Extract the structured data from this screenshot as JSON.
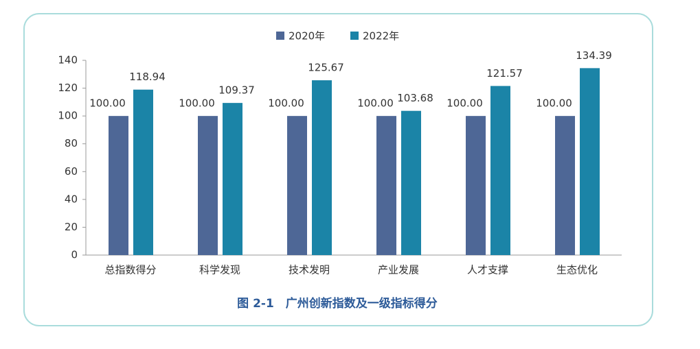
{
  "chart_data": {
    "type": "bar",
    "caption": "图 2-1　广州创新指数及一级指标得分",
    "categories": [
      "总指数得分",
      "科学发现",
      "技术发明",
      "产业发展",
      "人才支撑",
      "生态优化"
    ],
    "series": [
      {
        "name": "2020年",
        "color": "#4e6796",
        "values": [
          100,
          100,
          100,
          100,
          100,
          100
        ],
        "value_labels": [
          "100.00",
          "100.00",
          "100.00",
          "100.00",
          "100.00",
          "100.00"
        ]
      },
      {
        "name": "2022年",
        "color": "#1b84a7",
        "values": [
          118.94,
          109.37,
          125.67,
          103.68,
          121.57,
          134.39
        ]
      }
    ],
    "ylim": [
      0,
      140
    ],
    "yticks": [
      0,
      20,
      40,
      60,
      80,
      100,
      120,
      140
    ],
    "grid": false,
    "legend": "top"
  }
}
